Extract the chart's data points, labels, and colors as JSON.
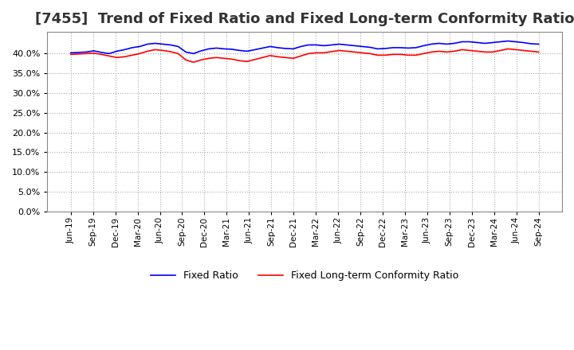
{
  "title": "[7455]  Trend of Fixed Ratio and Fixed Long-term Conformity Ratio",
  "title_fontsize": 13,
  "legend_labels": [
    "Fixed Ratio",
    "Fixed Long-term Conformity Ratio"
  ],
  "line_colors": [
    "#0000FF",
    "#FF0000"
  ],
  "background_color": "#FFFFFF",
  "plot_bg_color": "#FFFFFF",
  "grid_color": "#AAAAAA",
  "ylim": [
    0.0,
    0.455
  ],
  "yticks": [
    0.0,
    0.05,
    0.1,
    0.15,
    0.2,
    0.25,
    0.3,
    0.35,
    0.4
  ],
  "x_labels": [
    "Jun-19",
    "Sep-19",
    "Dec-19",
    "Mar-20",
    "Jun-20",
    "Sep-20",
    "Dec-20",
    "Mar-21",
    "Jun-21",
    "Sep-21",
    "Dec-21",
    "Mar-22",
    "Jun-22",
    "Sep-22",
    "Dec-22",
    "Mar-23",
    "Jun-23",
    "Sep-23",
    "Dec-23",
    "Mar-24",
    "Jun-24",
    "Sep-24"
  ],
  "fixed_ratio": [
    0.402,
    0.403,
    0.404,
    0.407,
    0.403,
    0.4,
    0.406,
    0.41,
    0.415,
    0.418,
    0.424,
    0.426,
    0.424,
    0.422,
    0.418,
    0.404,
    0.4,
    0.407,
    0.412,
    0.414,
    0.412,
    0.411,
    0.408,
    0.406,
    0.41,
    0.414,
    0.418,
    0.415,
    0.413,
    0.412,
    0.418,
    0.422,
    0.422,
    0.42,
    0.422,
    0.424,
    0.422,
    0.42,
    0.418,
    0.416,
    0.412,
    0.413,
    0.415,
    0.415,
    0.414,
    0.415,
    0.42,
    0.424,
    0.426,
    0.424,
    0.426,
    0.43,
    0.43,
    0.428,
    0.426,
    0.428,
    0.43,
    0.432,
    0.43,
    0.428,
    0.425,
    0.424
  ],
  "fixed_lt_ratio": [
    0.398,
    0.399,
    0.4,
    0.401,
    0.398,
    0.394,
    0.39,
    0.392,
    0.396,
    0.4,
    0.406,
    0.41,
    0.408,
    0.405,
    0.4,
    0.384,
    0.378,
    0.384,
    0.388,
    0.39,
    0.388,
    0.386,
    0.382,
    0.38,
    0.385,
    0.39,
    0.395,
    0.392,
    0.39,
    0.388,
    0.394,
    0.4,
    0.402,
    0.402,
    0.405,
    0.408,
    0.406,
    0.404,
    0.402,
    0.4,
    0.396,
    0.396,
    0.398,
    0.398,
    0.396,
    0.396,
    0.4,
    0.404,
    0.406,
    0.404,
    0.406,
    0.41,
    0.408,
    0.406,
    0.404,
    0.404,
    0.408,
    0.412,
    0.41,
    0.408,
    0.406,
    0.404
  ]
}
